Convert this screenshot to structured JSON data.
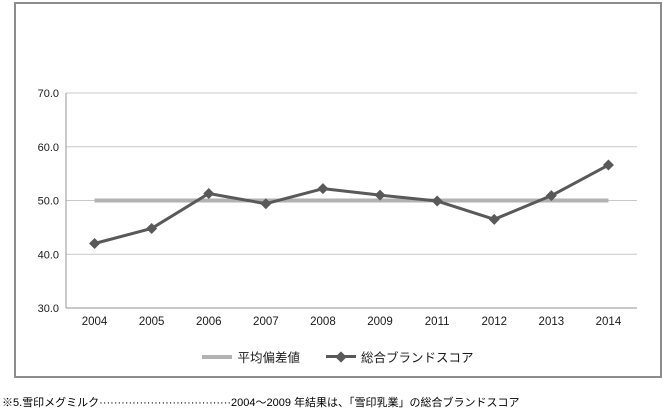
{
  "chart_data": {
    "type": "line",
    "title": "",
    "categories": [
      "2004",
      "2005",
      "2006",
      "2007",
      "2008",
      "2009",
      "2011",
      "2012",
      "2013",
      "2014"
    ],
    "series": [
      {
        "name": "平均偏差値",
        "role": "reference-line",
        "value": 50.0
      },
      {
        "name": "総合ブランドスコア",
        "role": "data-line",
        "marker": "diamond",
        "values": [
          42.0,
          44.8,
          51.3,
          49.4,
          52.2,
          51.0,
          49.9,
          46.5,
          50.9,
          56.6
        ]
      }
    ],
    "ylim": [
      30.0,
      70.0
    ],
    "ytick_step": 10,
    "ytick_labels": [
      "30.0",
      "40.0",
      "50.0",
      "60.0",
      "70.0"
    ],
    "grid": true,
    "legend_position": "bottom",
    "colors": {
      "series": "#595959",
      "reference": "#b2b2b2",
      "gridline": "#c9c9c9",
      "axis": "#969696",
      "frame_border": "#8c8c8c",
      "text": "#1a1a1a"
    }
  },
  "legend": {
    "items": [
      {
        "label": "平均偏差値"
      },
      {
        "label": "総合ブランドスコア"
      }
    ]
  },
  "caption": {
    "text": "※5.雪印メグミルク····································2004〜2009 年結果は、「雪印乳業」の総合ブランドスコア"
  }
}
